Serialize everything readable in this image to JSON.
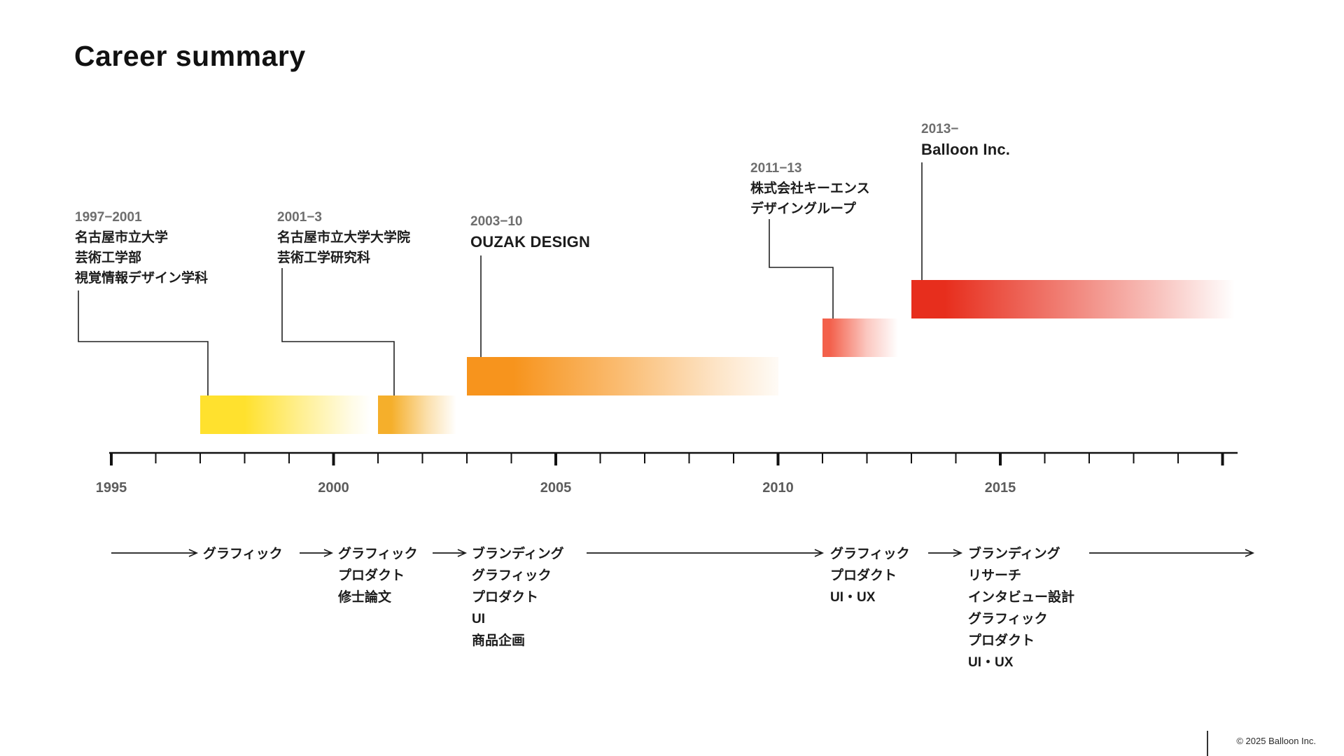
{
  "slide": {
    "title": "Career summary"
  },
  "footer": {
    "copyright": "© 2025 Balloon Inc."
  },
  "chart_data": {
    "type": "bar",
    "variant": "gantt-career-timeline",
    "title": "Career summary",
    "xlabel": "",
    "ylabel": "",
    "axis": {
      "start_year": 1995,
      "end_year": 2020,
      "tick_interval_years": 1,
      "major_tick_interval_years": 5,
      "year_labels": [
        "1995",
        "2000",
        "2005",
        "2010",
        "2015"
      ]
    },
    "segments": [
      {
        "date_label": "1997−2001",
        "org_lines": [
          "名古屋市立大学",
          "芸術工学部",
          "視覚情報デザイン学科"
        ],
        "start_year": 1997,
        "end_year": 2001,
        "row": 0,
        "color": "#FFE12E"
      },
      {
        "date_label": "2001−3",
        "org_lines": [
          "名古屋市立大学大学院",
          "芸術工学研究科"
        ],
        "start_year": 2001,
        "end_year": 2003,
        "row": 0,
        "color": "#F5AF2B"
      },
      {
        "date_label": "2003−10",
        "org_lines": [
          "OUZAK DESIGN"
        ],
        "start_year": 2003,
        "end_year": 2010,
        "row": 1,
        "color": "#F7941D"
      },
      {
        "date_label": "2011−13",
        "org_lines": [
          "株式会社キーエンス",
          "デザイングループ"
        ],
        "start_year": 2011,
        "end_year": 2013,
        "row": 2,
        "color": "#F3604B"
      },
      {
        "date_label": "2013−",
        "org_lines": [
          "Balloon Inc."
        ],
        "start_year": 2013,
        "end_year": 2020.5,
        "row": 3,
        "color": "#E72E1D"
      }
    ],
    "skill_stages": [
      {
        "skills": [
          "グラフィック"
        ]
      },
      {
        "skills": [
          "グラフィック",
          "プロダクト",
          "修士論文"
        ]
      },
      {
        "skills": [
          "ブランディング",
          "グラフィック",
          "プロダクト",
          "UI",
          "商品企画"
        ]
      },
      {
        "skills": [
          "グラフィック",
          "プロダクト",
          "UI・UX"
        ]
      },
      {
        "skills": [
          "ブランディング",
          "リサーチ",
          "インタビュー設計",
          "グラフィック",
          "プロダクト",
          "UI・UX"
        ]
      }
    ]
  }
}
